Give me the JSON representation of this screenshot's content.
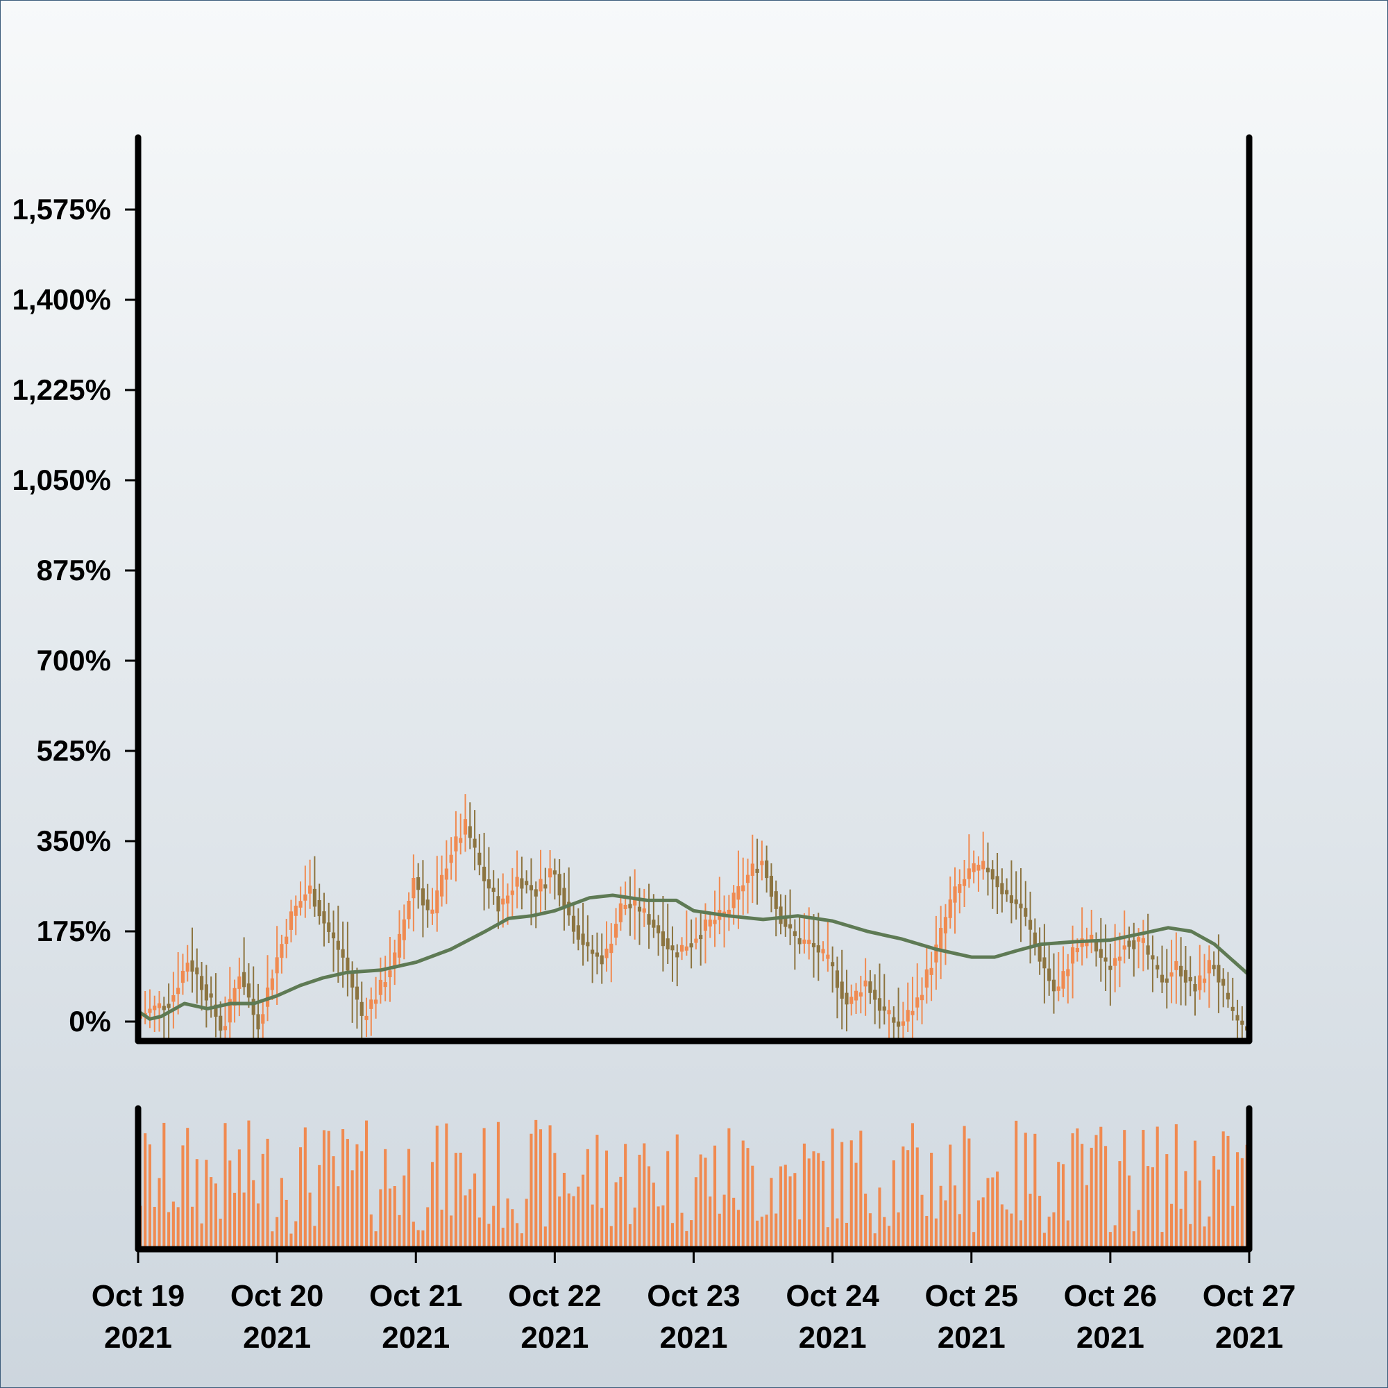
{
  "chart_data": {
    "type": "candlestick",
    "title": "",
    "xlabel": "",
    "ylabel": "",
    "x_range": [
      "2021-10-19",
      "2021-10-27"
    ],
    "ylim": [
      -30,
      1720
    ],
    "y_ticks": [
      0,
      175,
      350,
      525,
      700,
      875,
      1050,
      1225,
      1400,
      1575
    ],
    "y_tick_labels": [
      "0%",
      "175%",
      "350%",
      "525%",
      "700%",
      "875%",
      "1,050%",
      "1,225%",
      "1,400%",
      "1,575%"
    ],
    "x_ticks": [
      "2021-10-19",
      "2021-10-20",
      "2021-10-21",
      "2021-10-22",
      "2021-10-23",
      "2021-10-24",
      "2021-10-25",
      "2021-10-26",
      "2021-10-27"
    ],
    "x_tick_labels": [
      {
        "month_day": "Oct 19",
        "year": "2021"
      },
      {
        "month_day": "Oct 20",
        "year": "2021"
      },
      {
        "month_day": "Oct 21",
        "year": "2021"
      },
      {
        "month_day": "Oct 22",
        "year": "2021"
      },
      {
        "month_day": "Oct 23",
        "year": "2021"
      },
      {
        "month_day": "Oct 24",
        "year": "2021"
      },
      {
        "month_day": "Oct 25",
        "year": "2021"
      },
      {
        "month_day": "Oct 26",
        "year": "2021"
      },
      {
        "month_day": "Oct 27",
        "year": "2021"
      }
    ],
    "close_path": [
      [
        "2021-10-19T00:00",
        10
      ],
      [
        "2021-10-19T06:00",
        40
      ],
      [
        "2021-10-19T09:00",
        120
      ],
      [
        "2021-10-19T12:00",
        60
      ],
      [
        "2021-10-19T15:00",
        -20
      ],
      [
        "2021-10-19T18:00",
        100
      ],
      [
        "2021-10-19T21:00",
        -10
      ],
      [
        "2021-10-20T00:00",
        110
      ],
      [
        "2021-10-20T03:00",
        210
      ],
      [
        "2021-10-20T06:00",
        260
      ],
      [
        "2021-10-20T09:00",
        180
      ],
      [
        "2021-10-20T12:00",
        120
      ],
      [
        "2021-10-20T15:00",
        10
      ],
      [
        "2021-10-20T18:00",
        60
      ],
      [
        "2021-10-20T21:00",
        130
      ],
      [
        "2021-10-21T00:00",
        280
      ],
      [
        "2021-10-21T03:00",
        200
      ],
      [
        "2021-10-21T06:00",
        320
      ],
      [
        "2021-10-21T09:00",
        380
      ],
      [
        "2021-10-21T12:00",
        280
      ],
      [
        "2021-10-21T15:00",
        220
      ],
      [
        "2021-10-21T18:00",
        280
      ],
      [
        "2021-10-21T21:00",
        250
      ],
      [
        "2021-10-22T00:00",
        300
      ],
      [
        "2021-10-22T03:00",
        200
      ],
      [
        "2021-10-22T06:00",
        140
      ],
      [
        "2021-10-22T09:00",
        120
      ],
      [
        "2021-10-22T12:00",
        230
      ],
      [
        "2021-10-22T15:00",
        220
      ],
      [
        "2021-10-22T18:00",
        180
      ],
      [
        "2021-10-22T21:00",
        130
      ],
      [
        "2021-10-23T00:00",
        160
      ],
      [
        "2021-10-23T03:00",
        190
      ],
      [
        "2021-10-23T06:00",
        210
      ],
      [
        "2021-10-23T09:00",
        270
      ],
      [
        "2021-10-23T12:00",
        320
      ],
      [
        "2021-10-23T15:00",
        210
      ],
      [
        "2021-10-23T18:00",
        160
      ],
      [
        "2021-10-23T21:00",
        150
      ],
      [
        "2021-10-24T00:00",
        110
      ],
      [
        "2021-10-24T03:00",
        30
      ],
      [
        "2021-10-24T06:00",
        80
      ],
      [
        "2021-10-24T09:00",
        20
      ],
      [
        "2021-10-24T12:00",
        -10
      ],
      [
        "2021-10-24T15:00",
        40
      ],
      [
        "2021-10-24T18:00",
        130
      ],
      [
        "2021-10-24T21:00",
        240
      ],
      [
        "2021-10-25T00:00",
        290
      ],
      [
        "2021-10-25T03:00",
        300
      ],
      [
        "2021-10-25T06:00",
        250
      ],
      [
        "2021-10-25T09:00",
        220
      ],
      [
        "2021-10-25T12:00",
        130
      ],
      [
        "2021-10-25T15:00",
        50
      ],
      [
        "2021-10-25T18:00",
        140
      ],
      [
        "2021-10-25T21:00",
        160
      ],
      [
        "2021-10-26T00:00",
        100
      ],
      [
        "2021-10-26T03:00",
        160
      ],
      [
        "2021-10-26T06:00",
        150
      ],
      [
        "2021-10-26T09:00",
        80
      ],
      [
        "2021-10-26T12:00",
        110
      ],
      [
        "2021-10-26T15:00",
        60
      ],
      [
        "2021-10-26T18:00",
        120
      ],
      [
        "2021-10-26T21:00",
        20
      ],
      [
        "2021-10-27T00:00",
        -20
      ]
    ],
    "moving_average": [
      [
        "2021-10-19T00:00",
        20
      ],
      [
        "2021-10-19T02:00",
        5
      ],
      [
        "2021-10-19T04:00",
        10
      ],
      [
        "2021-10-19T08:00",
        35
      ],
      [
        "2021-10-19T12:00",
        25
      ],
      [
        "2021-10-19T16:00",
        35
      ],
      [
        "2021-10-19T20:00",
        35
      ],
      [
        "2021-10-20T00:00",
        50
      ],
      [
        "2021-10-20T04:00",
        70
      ],
      [
        "2021-10-20T08:00",
        85
      ],
      [
        "2021-10-20T12:00",
        95
      ],
      [
        "2021-10-20T18:00",
        100
      ],
      [
        "2021-10-21T00:00",
        115
      ],
      [
        "2021-10-21T06:00",
        140
      ],
      [
        "2021-10-21T12:00",
        175
      ],
      [
        "2021-10-21T16:00",
        200
      ],
      [
        "2021-10-21T20:00",
        205
      ],
      [
        "2021-10-22T00:00",
        215
      ],
      [
        "2021-10-22T06:00",
        240
      ],
      [
        "2021-10-22T10:00",
        245
      ],
      [
        "2021-10-22T16:00",
        235
      ],
      [
        "2021-10-22T21:00",
        235
      ],
      [
        "2021-10-23T00:00",
        215
      ],
      [
        "2021-10-23T06:00",
        205
      ],
      [
        "2021-10-23T12:00",
        198
      ],
      [
        "2021-10-23T18:00",
        205
      ],
      [
        "2021-10-24T00:00",
        195
      ],
      [
        "2021-10-24T06:00",
        175
      ],
      [
        "2021-10-24T12:00",
        160
      ],
      [
        "2021-10-24T18:00",
        140
      ],
      [
        "2021-10-25T00:00",
        125
      ],
      [
        "2021-10-25T04:00",
        125
      ],
      [
        "2021-10-25T08:00",
        138
      ],
      [
        "2021-10-25T12:00",
        150
      ],
      [
        "2021-10-25T18:00",
        155
      ],
      [
        "2021-10-26T00:00",
        158
      ],
      [
        "2021-10-26T06:00",
        172
      ],
      [
        "2021-10-26T10:00",
        182
      ],
      [
        "2021-10-26T14:00",
        175
      ],
      [
        "2021-10-26T18:00",
        150
      ],
      [
        "2021-10-27T00:00",
        90
      ]
    ],
    "volume_note": "per-candle volume bars shown in lower pane (no axis labels printed)",
    "colors": {
      "candle_up": "#f08a50",
      "candle_down": "#8c7440",
      "moving_average": "#5e7a54",
      "volume": "#f08a50",
      "axis": "#000000"
    },
    "grid": false,
    "legend": "none"
  }
}
